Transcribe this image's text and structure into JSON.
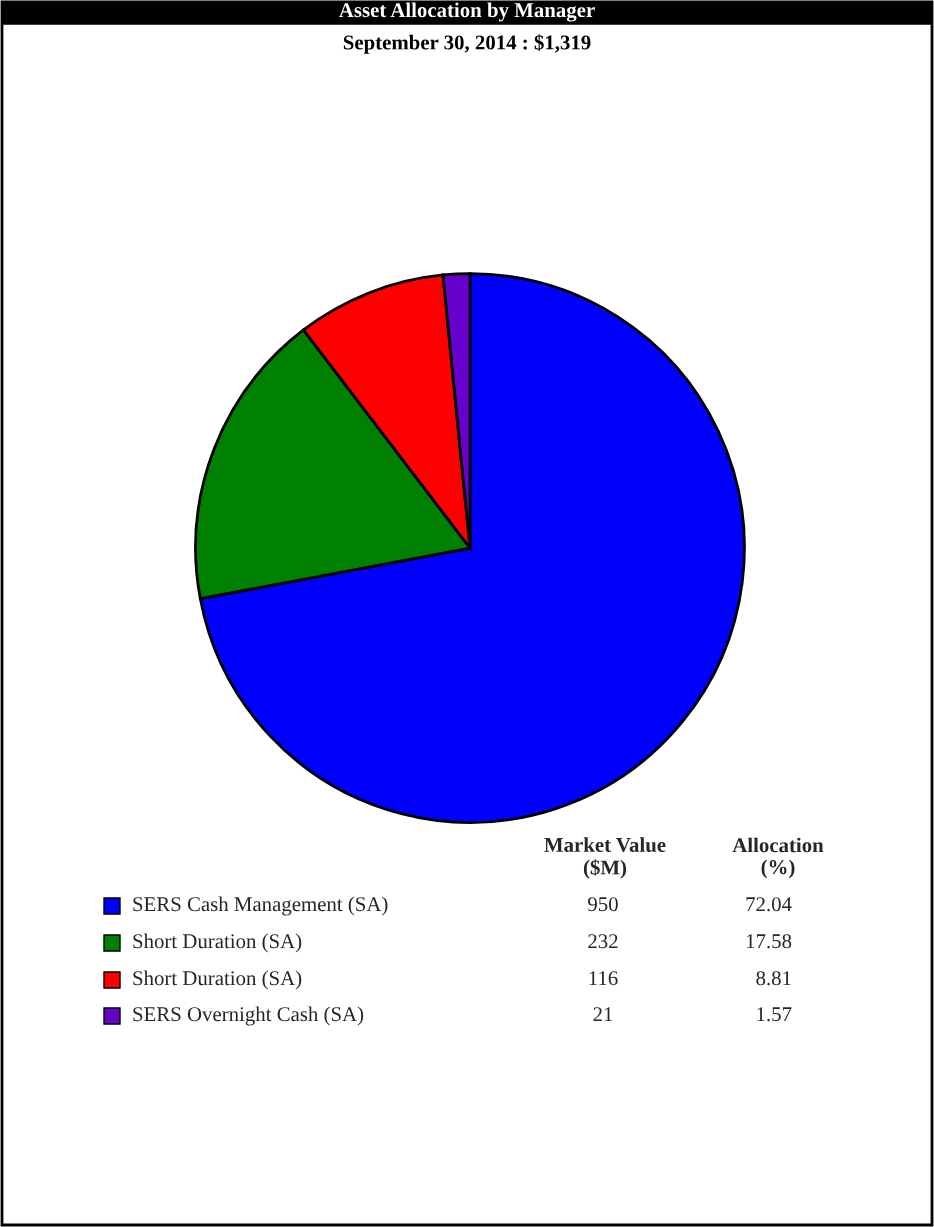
{
  "chart_data": {
    "type": "pie",
    "title": "Asset Allocation by Manager",
    "subtitle": "September 30, 2014 : $1,319",
    "categories": [
      "SERS Cash Management (SA)",
      "Short Duration (SA)",
      "Short Duration (SA)",
      "SERS Overnight Cash (SA)"
    ],
    "values": [
      72.04,
      17.58,
      8.81,
      1.57
    ],
    "colors": [
      "#0000ff",
      "#008000",
      "#ff0000",
      "#6600cc"
    ],
    "data_labels": true,
    "legend": "bottom",
    "annotations": [
      "Market Value\n($M)",
      "Allocation\n(%)",
      "950",
      "232",
      "116",
      "21"
    ]
  }
}
